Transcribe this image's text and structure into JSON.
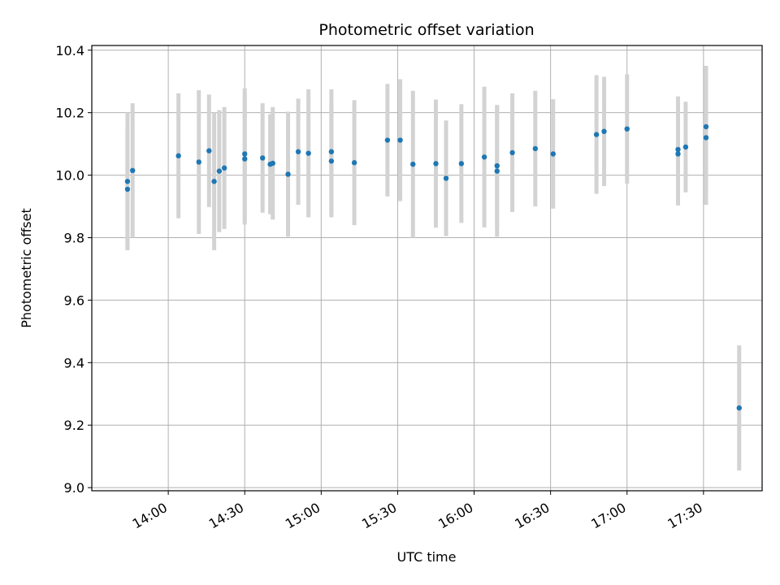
{
  "chart_data": {
    "type": "scatter",
    "title": "Photometric offset variation",
    "xlabel": "UTC time",
    "ylabel": "Photometric offset",
    "xlim": [
      "13:30",
      "17:53"
    ],
    "ylim": [
      8.99,
      10.415
    ],
    "x_ticks": [
      "14:00",
      "14:30",
      "15:00",
      "15:30",
      "16:00",
      "16:30",
      "17:00",
      "17:30"
    ],
    "y_ticks": [
      "9.0",
      "9.2",
      "9.4",
      "9.6",
      "9.8",
      "10.0",
      "10.2",
      "10.4"
    ],
    "grid": true,
    "point_color": "#1f77b4",
    "errorbar_color": "#d3d3d3",
    "series": [
      {
        "x": [
          "13:44",
          "13:44",
          "13:46",
          "14:04",
          "14:12",
          "14:16",
          "14:18",
          "14:20",
          "14:22",
          "14:30",
          "14:30",
          "14:37",
          "14:40",
          "14:41",
          "14:47",
          "14:51",
          "14:55",
          "15:04",
          "15:04",
          "15:13",
          "15:26",
          "15:31",
          "15:36",
          "15:45",
          "15:49",
          "15:55",
          "16:04",
          "16:09",
          "16:09",
          "16:15",
          "16:24",
          "16:31",
          "16:48",
          "16:51",
          "17:00",
          "17:20",
          "17:20",
          "17:23",
          "17:31",
          "17:31",
          "17:44"
        ],
        "y": [
          9.98,
          9.955,
          10.015,
          10.062,
          10.042,
          10.078,
          9.98,
          10.013,
          10.023,
          10.068,
          10.052,
          10.055,
          10.035,
          10.038,
          10.003,
          10.075,
          10.07,
          10.075,
          10.045,
          10.04,
          10.112,
          10.112,
          10.035,
          10.037,
          9.99,
          10.037,
          10.058,
          10.03,
          10.013,
          10.072,
          10.085,
          10.068,
          10.13,
          10.14,
          10.148,
          10.082,
          10.068,
          10.09,
          10.155,
          10.12,
          9.255
        ],
        "err": [
          0.22,
          0.195,
          0.215,
          0.2,
          0.23,
          0.18,
          0.22,
          0.195,
          0.195,
          0.21,
          0.21,
          0.175,
          0.16,
          0.18,
          0.2,
          0.17,
          0.205,
          0.2,
          0.18,
          0.2,
          0.18,
          0.195,
          0.235,
          0.205,
          0.185,
          0.19,
          0.225,
          0.195,
          0.21,
          0.19,
          0.185,
          0.175,
          0.19,
          0.175,
          0.175,
          0.17,
          0.165,
          0.145,
          0.195,
          0.215,
          0.2
        ]
      }
    ]
  }
}
